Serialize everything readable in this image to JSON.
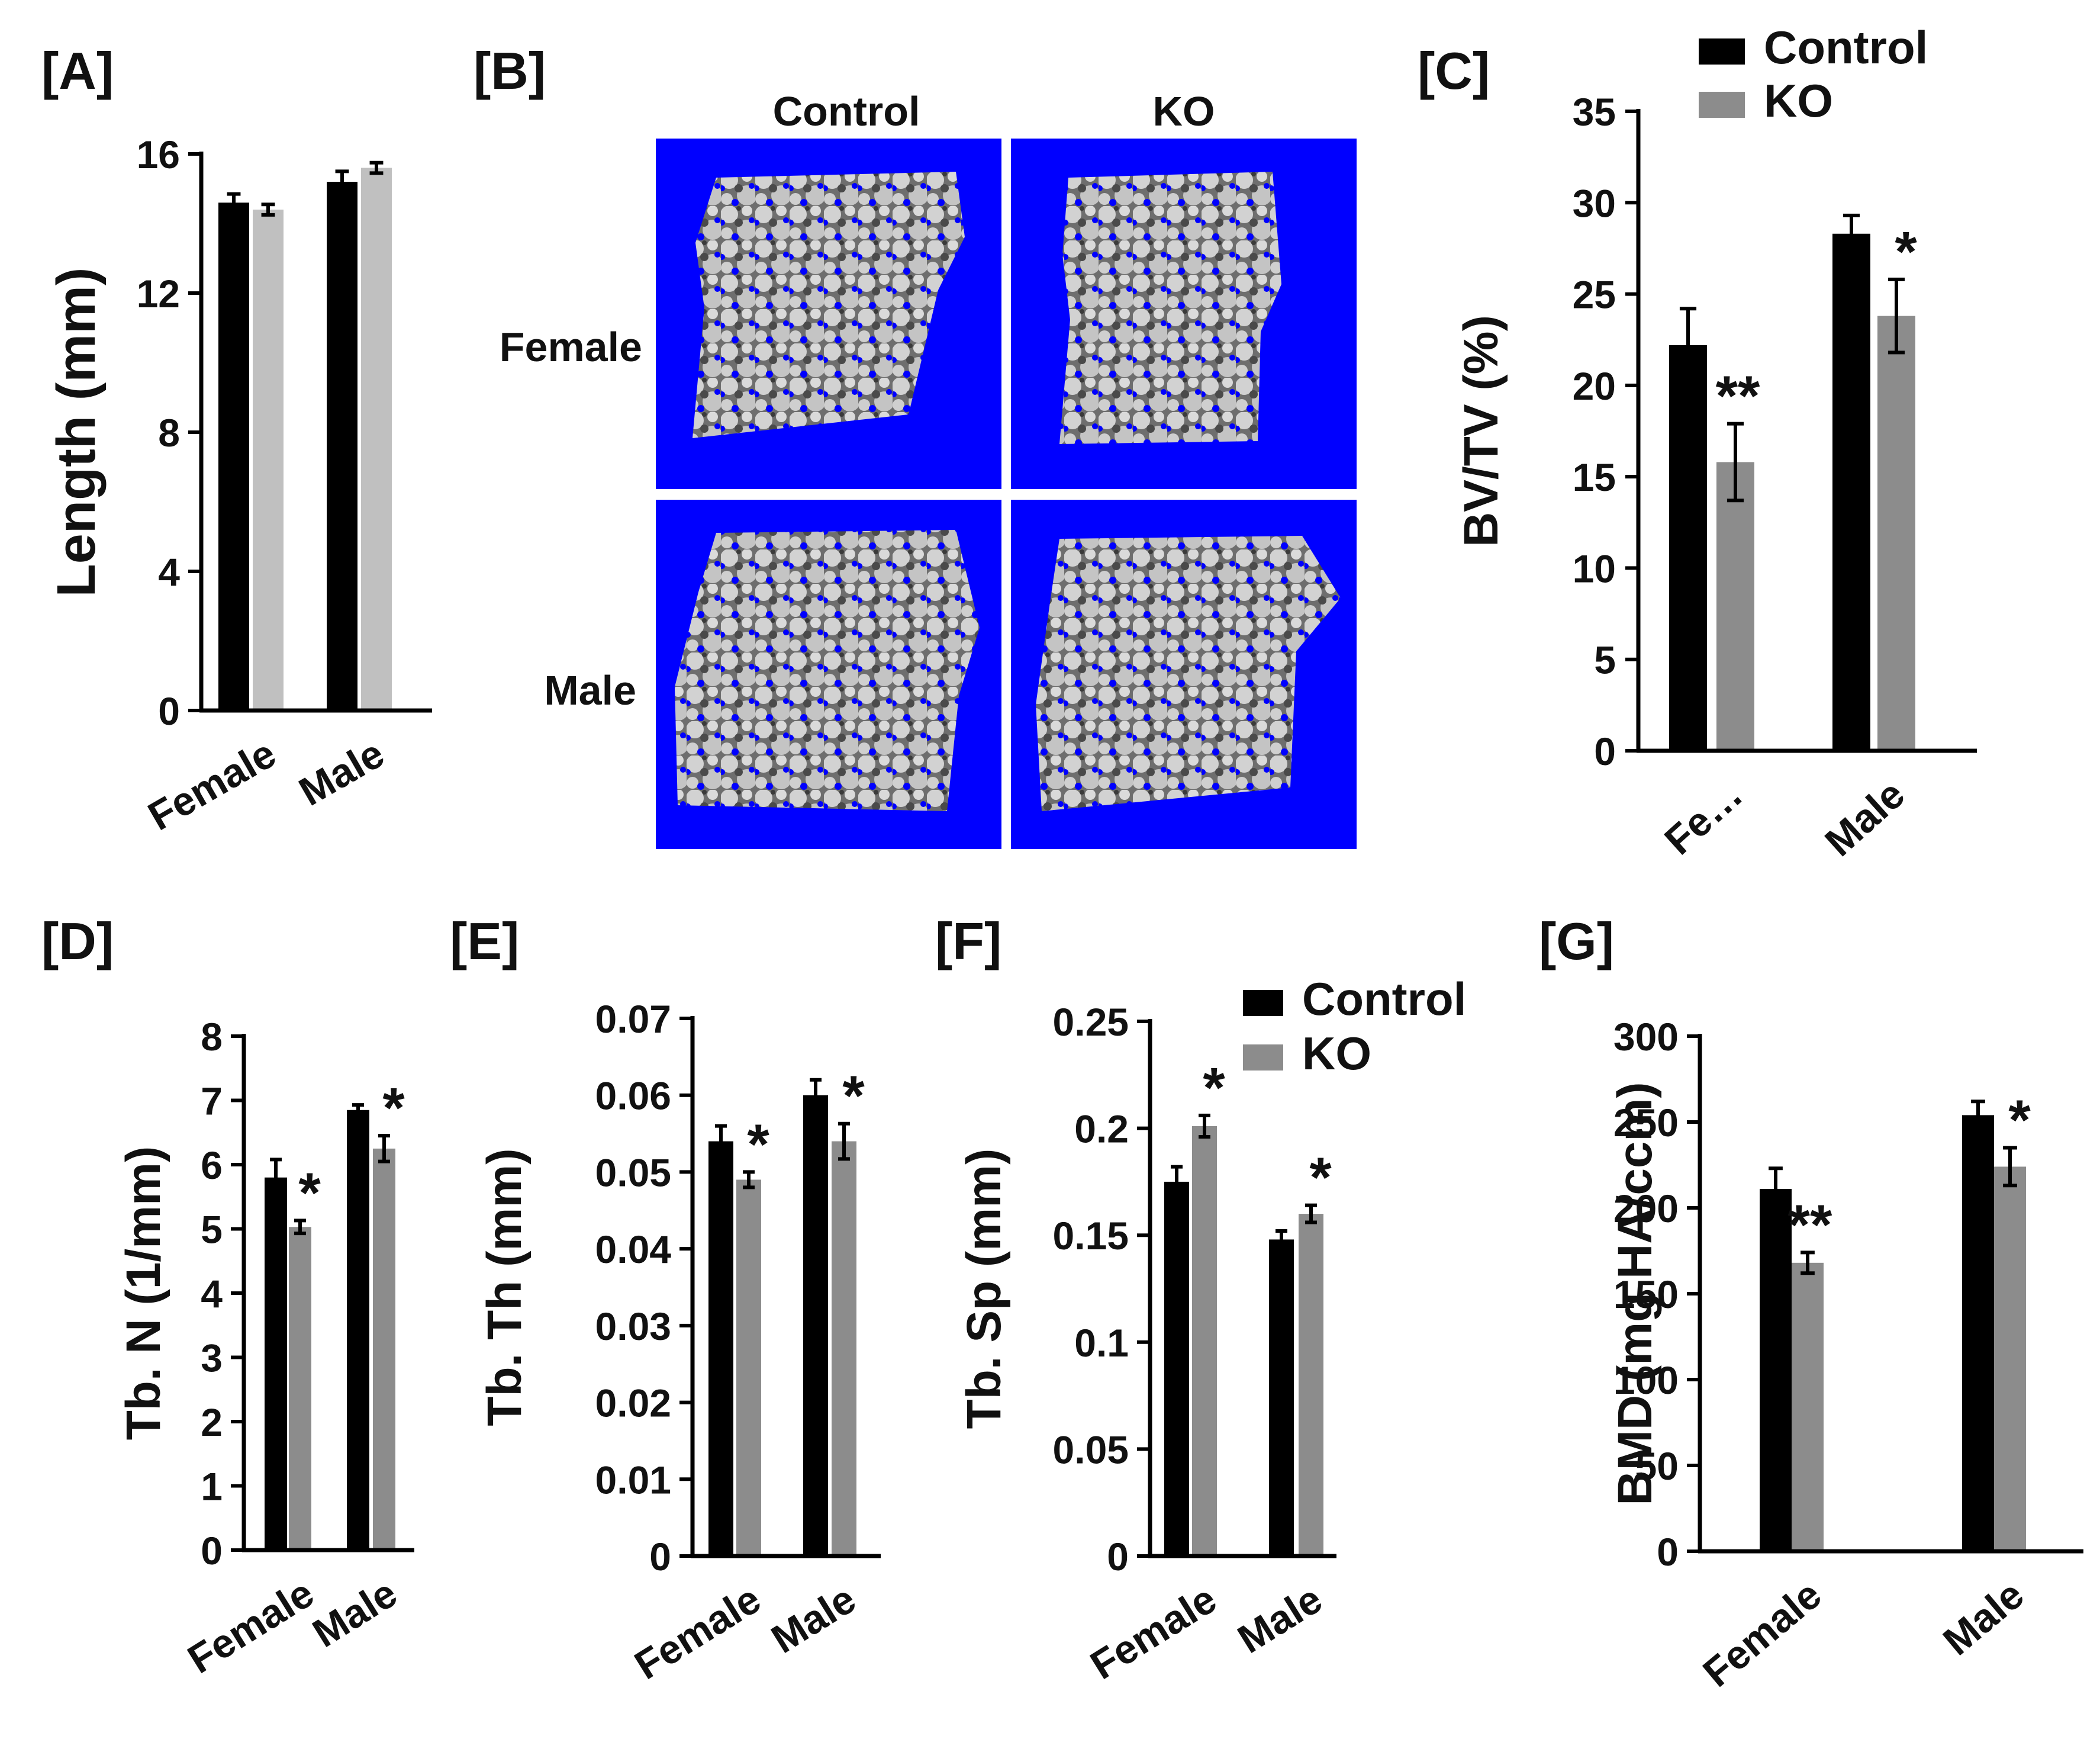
{
  "panels": {
    "B": {
      "label": "[B]",
      "col_headers": [
        "Control",
        "KO"
      ],
      "row_headers": [
        "Female",
        "Male"
      ],
      "background_color": "#0000ff",
      "bone_color": "#c8c8c8"
    }
  },
  "legend": {
    "entries": [
      "Control",
      "KO"
    ]
  },
  "colors": {
    "control": "#000000",
    "ko_light": "#c0c0c0",
    "ko": "#8c8c8c"
  },
  "chart_data": [
    {
      "id": "A",
      "type": "bar",
      "label": "[A]",
      "title": "",
      "categories": [
        "Female",
        "Male"
      ],
      "ylabel": "Length (mm)",
      "xlabel": "",
      "ylim": [
        0,
        16
      ],
      "yticks": [
        "0",
        "4",
        "8",
        "12",
        "16"
      ],
      "series": [
        {
          "name": "Control",
          "values": [
            14.6,
            15.2
          ],
          "errors": [
            0.25,
            0.3
          ]
        },
        {
          "name": "KO",
          "values": [
            14.4,
            15.6
          ],
          "errors": [
            0.15,
            0.15
          ]
        }
      ],
      "annotations": [
        "",
        "",
        "",
        ""
      ],
      "legend": false,
      "grid": false
    },
    {
      "id": "C",
      "type": "bar",
      "label": "[C]",
      "title": "",
      "categories": [
        "Fe…",
        "Male"
      ],
      "ylabel": "BV/TV (%)",
      "xlabel": "",
      "ylim": [
        0,
        35
      ],
      "yticks": [
        "0",
        "5",
        "10",
        "15",
        "20",
        "25",
        "30",
        "35"
      ],
      "series": [
        {
          "name": "Control",
          "values": [
            22.2,
            28.3
          ],
          "errors": [
            2.0,
            1.0
          ]
        },
        {
          "name": "KO",
          "values": [
            15.8,
            23.8
          ],
          "errors": [
            2.1,
            2.0
          ]
        }
      ],
      "annotations": [
        "",
        "**",
        "",
        "*"
      ],
      "legend": true,
      "legend_position": "top",
      "grid": false
    },
    {
      "id": "D",
      "type": "bar",
      "label": "[D]",
      "title": "",
      "categories": [
        "Female",
        "Male"
      ],
      "ylabel": "Tb. N (1/mm)",
      "xlabel": "",
      "ylim": [
        0,
        8
      ],
      "yticks": [
        "0",
        "1",
        "2",
        "3",
        "4",
        "5",
        "6",
        "7",
        "8"
      ],
      "series": [
        {
          "name": "Control",
          "values": [
            5.8,
            6.85
          ],
          "errors": [
            0.28,
            0.08
          ]
        },
        {
          "name": "KO",
          "values": [
            5.03,
            6.25
          ],
          "errors": [
            0.1,
            0.2
          ]
        }
      ],
      "annotations": [
        "",
        "*",
        "",
        "*"
      ],
      "legend": false,
      "grid": false
    },
    {
      "id": "E",
      "type": "bar",
      "label": "[E]",
      "title": "",
      "categories": [
        "Female",
        "Male"
      ],
      "ylabel": "Tb. Th (mm)",
      "xlabel": "",
      "ylim": [
        0,
        0.07
      ],
      "yticks": [
        "0",
        "0.01",
        "0.02",
        "0.03",
        "0.04",
        "0.05",
        "0.06",
        "0.07"
      ],
      "series": [
        {
          "name": "Control",
          "values": [
            0.054,
            0.06
          ],
          "errors": [
            0.002,
            0.002
          ]
        },
        {
          "name": "KO",
          "values": [
            0.049,
            0.054
          ],
          "errors": [
            0.001,
            0.0023
          ]
        }
      ],
      "annotations": [
        "",
        "*",
        "",
        "*"
      ],
      "legend": false,
      "grid": false
    },
    {
      "id": "F",
      "type": "bar",
      "label": "[F]",
      "title": "",
      "categories": [
        "Female",
        "Male"
      ],
      "ylabel": "Tb. Sp (mm)",
      "xlabel": "",
      "ylim": [
        0,
        0.25
      ],
      "yticks": [
        "0",
        "0.05",
        "0.1",
        "0.15",
        "0.2",
        "0.25"
      ],
      "series": [
        {
          "name": "Control",
          "values": [
            0.175,
            0.148
          ],
          "errors": [
            0.007,
            0.004
          ]
        },
        {
          "name": "KO",
          "values": [
            0.201,
            0.16
          ],
          "errors": [
            0.005,
            0.004
          ]
        }
      ],
      "annotations": [
        "",
        "*",
        "",
        "*"
      ],
      "legend": true,
      "legend_position": "top-right",
      "grid": false
    },
    {
      "id": "G",
      "type": "bar",
      "label": "[G]",
      "title": "",
      "categories": [
        "Female",
        "Male"
      ],
      "ylabel": "BMD (mg HA/ccm)",
      "xlabel": "",
      "ylim": [
        0,
        300
      ],
      "yticks": [
        "0",
        "50",
        "100",
        "150",
        "200",
        "250",
        "300"
      ],
      "series": [
        {
          "name": "Control",
          "values": [
            211,
            254
          ],
          "errors": [
            12,
            8
          ]
        },
        {
          "name": "KO",
          "values": [
            168,
            224
          ],
          "errors": [
            6,
            11
          ]
        }
      ],
      "annotations": [
        "",
        "**",
        "",
        "*"
      ],
      "legend": false,
      "grid": false
    }
  ]
}
